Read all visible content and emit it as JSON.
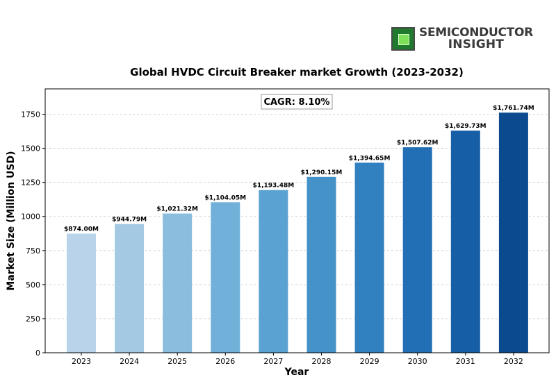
{
  "logo": {
    "line1": "SEMICONDUCTOR",
    "line2": "INSIGHT"
  },
  "chart_data": {
    "type": "bar",
    "title": "Global HVDC Circuit Breaker market Growth (2023-2032)",
    "xlabel": "Year",
    "ylabel": "Market Size (Million USD)",
    "annotation": "CAGR: 8.10%",
    "categories": [
      "2023",
      "2024",
      "2025",
      "2026",
      "2027",
      "2028",
      "2029",
      "2030",
      "2031",
      "2032"
    ],
    "values": [
      874.0,
      944.79,
      1021.32,
      1104.05,
      1193.48,
      1290.15,
      1394.65,
      1507.62,
      1629.73,
      1761.74
    ],
    "data_labels": [
      "$874.00M",
      "$944.79M",
      "$1,021.32M",
      "$1,104.05M",
      "$1,193.48M",
      "$1,290.15M",
      "$1,394.65M",
      "$1,507.62M",
      "$1,629.73M",
      "$1,761.74M"
    ],
    "colors": [
      "#b9d4ea",
      "#a3c9e3",
      "#8bbdde",
      "#71b0d9",
      "#5aa2d1",
      "#4592c8",
      "#3180bf",
      "#226fb5",
      "#165fa7",
      "#0c4a8f"
    ],
    "ylim": [
      0,
      1936
    ],
    "yticks": [
      0,
      250,
      500,
      750,
      1000,
      1250,
      1500,
      1750
    ],
    "grid": true
  }
}
